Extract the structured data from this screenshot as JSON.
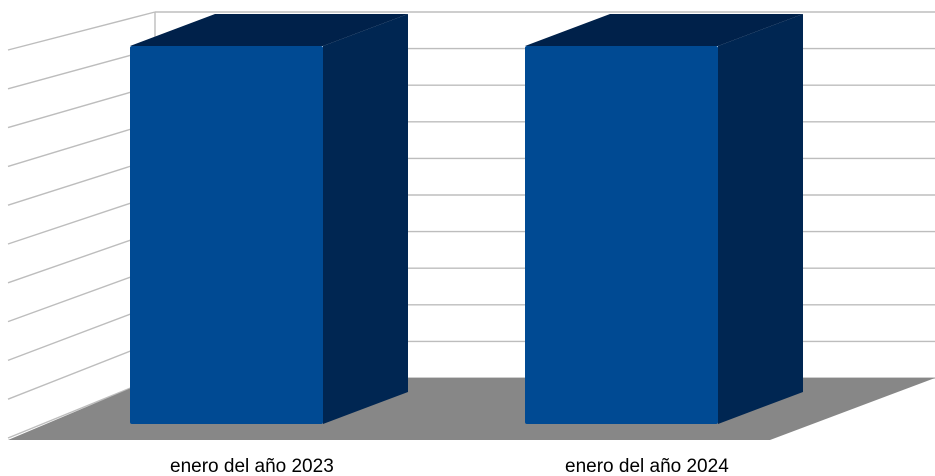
{
  "chart_data": {
    "type": "bar",
    "categories": [
      "enero del año 2023",
      "enero del año 2024"
    ],
    "values": [
      100,
      100
    ],
    "ylim": [
      0,
      100
    ],
    "grid": true,
    "three_d": true,
    "colors": {
      "bar_front": "#004A93",
      "bar_side": "#002652",
      "bar_top": "#00214A",
      "floor": "#878787",
      "grid": "#BDBDBD"
    }
  }
}
